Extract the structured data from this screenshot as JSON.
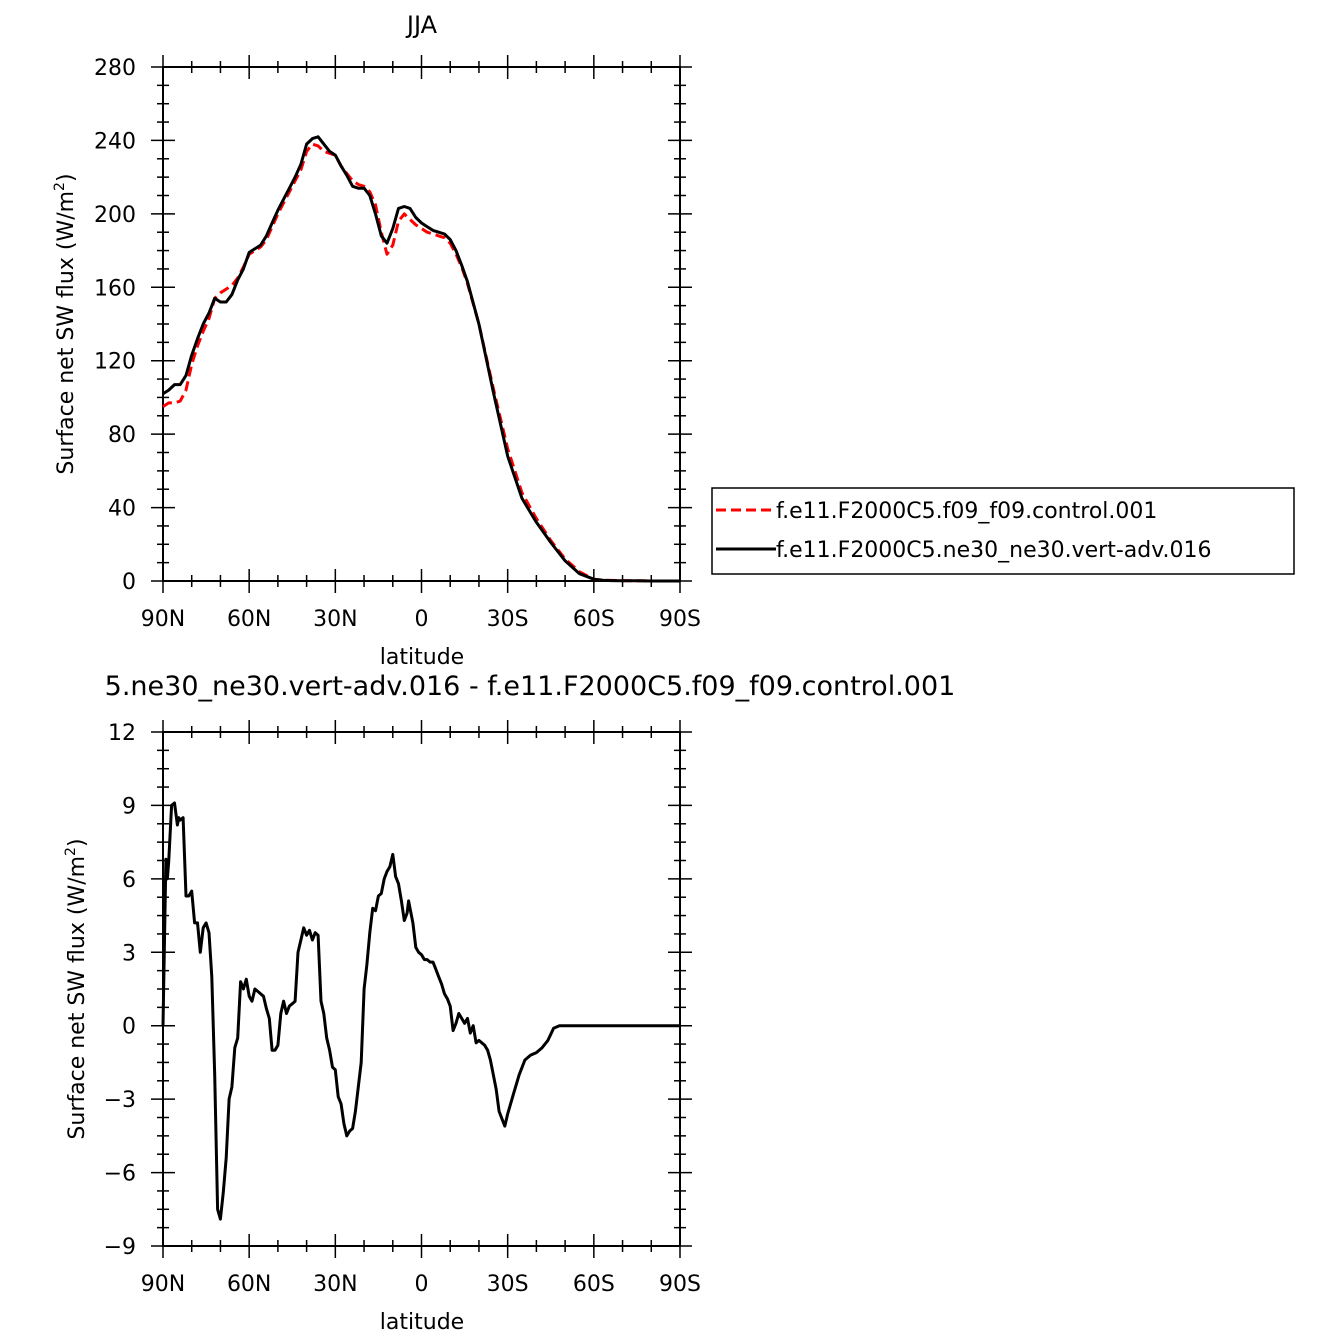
{
  "chart_data": [
    {
      "type": "line",
      "title": "JJA",
      "xlabel": "latitude",
      "ylabel": "Surface net SW flux (W/m",
      "ylabel_sup": "2",
      "ylabel_end": ")",
      "x_ticks": [
        {
          "value": 90,
          "label": "90N"
        },
        {
          "value": 60,
          "label": "60N"
        },
        {
          "value": 30,
          "label": "30N"
        },
        {
          "value": 0,
          "label": "0"
        },
        {
          "value": -30,
          "label": "30S"
        },
        {
          "value": -60,
          "label": "60S"
        },
        {
          "value": -90,
          "label": "90S"
        }
      ],
      "y_ticks": [
        0,
        40,
        80,
        120,
        160,
        200,
        240,
        280
      ],
      "xlim": [
        90,
        -90
      ],
      "ylim": [
        0,
        280
      ],
      "legend_position": "right",
      "series": [
        {
          "name": "f.e11.F2000C5.f09_f09.control.001",
          "color": "#ff0000",
          "dashed": true,
          "x": [
            90,
            88,
            86,
            84,
            82,
            80,
            78,
            76,
            74,
            72,
            70,
            68,
            66,
            64,
            62,
            60,
            58,
            56,
            54,
            52,
            50,
            48,
            46,
            44,
            42,
            40,
            38,
            36,
            34,
            32,
            30,
            28,
            26,
            24,
            22,
            20,
            18,
            16,
            14,
            12,
            10,
            8,
            6,
            4,
            2,
            0,
            -2,
            -4,
            -6,
            -8,
            -10,
            -12,
            -14,
            -16,
            -20,
            -25,
            -30,
            -35,
            -40,
            -45,
            -50,
            -55,
            -60,
            -63,
            -66,
            -70,
            -75,
            -80,
            -90
          ],
          "y": [
            95,
            97,
            97,
            98,
            104,
            118,
            128,
            136,
            143,
            154,
            157,
            159,
            161,
            165,
            171,
            178,
            180,
            182,
            186,
            193,
            200,
            206,
            212,
            218,
            224,
            234,
            238,
            237,
            234,
            233,
            232,
            226,
            222,
            218,
            216,
            215,
            212,
            205,
            190,
            178,
            183,
            196,
            200,
            197,
            194,
            192,
            190,
            189,
            188,
            187,
            184,
            178,
            171,
            162,
            140,
            105,
            72,
            48,
            34,
            22,
            12,
            5,
            1,
            0.5,
            0.3,
            0.2,
            0.1,
            0,
            0
          ]
        },
        {
          "name": "f.e11.F2000C5.ne30_ne30.vert-adv.016",
          "color": "#000000",
          "dashed": false,
          "x": [
            90,
            88,
            86,
            84,
            82,
            80,
            78,
            76,
            74,
            72,
            70,
            68,
            66,
            64,
            62,
            60,
            58,
            56,
            54,
            52,
            50,
            48,
            46,
            44,
            42,
            40,
            38,
            36,
            34,
            32,
            30,
            28,
            26,
            24,
            22,
            20,
            18,
            16,
            14,
            12,
            10,
            8,
            6,
            4,
            2,
            0,
            -2,
            -4,
            -6,
            -8,
            -10,
            -12,
            -14,
            -16,
            -20,
            -25,
            -30,
            -35,
            -40,
            -45,
            -50,
            -55,
            -60,
            -63,
            -66,
            -70,
            -75,
            -80,
            -90
          ],
          "y": [
            102,
            104,
            107,
            107,
            112,
            123,
            132,
            140,
            146,
            154,
            152,
            152,
            156,
            164,
            170,
            179,
            181,
            183,
            188,
            195,
            202,
            208,
            214,
            220,
            227,
            238,
            241,
            242,
            238,
            234,
            232,
            226,
            221,
            215,
            214,
            214,
            210,
            200,
            188,
            184,
            192,
            203,
            204,
            203,
            198,
            195,
            193,
            191,
            190,
            189,
            186,
            180,
            172,
            163,
            140,
            103,
            68,
            45,
            32,
            21,
            11,
            4,
            1,
            0.4,
            0.2,
            0.1,
            0.1,
            0,
            0
          ]
        }
      ]
    },
    {
      "type": "line",
      "title": "5.ne30_ne30.vert-adv.016 - f.e11.F2000C5.f09_f09.control.001",
      "xlabel": "latitude",
      "ylabel": "Surface net SW flux (W/m",
      "ylabel_sup": "2",
      "ylabel_end": ")",
      "x_ticks": [
        {
          "value": 90,
          "label": "90N"
        },
        {
          "value": 60,
          "label": "60N"
        },
        {
          "value": 30,
          "label": "30N"
        },
        {
          "value": 0,
          "label": "0"
        },
        {
          "value": -30,
          "label": "30S"
        },
        {
          "value": -60,
          "label": "60S"
        },
        {
          "value": -90,
          "label": "90S"
        }
      ],
      "y_ticks": [
        -9,
        -6,
        -3,
        0,
        3,
        6,
        9,
        12
      ],
      "xlim": [
        90,
        -90
      ],
      "ylim": [
        -9,
        12
      ],
      "series": [
        {
          "color": "#000000",
          "dashed": false,
          "x": [
            90,
            89,
            88.5,
            88,
            87,
            86,
            85,
            84.5,
            84,
            83,
            82,
            81,
            80,
            79,
            78,
            77,
            76,
            75,
            74,
            73,
            72,
            71,
            70,
            69,
            68,
            67,
            66,
            65,
            64,
            63,
            62,
            61,
            60,
            59,
            58,
            57,
            56,
            55,
            54,
            53,
            52,
            51,
            50,
            49,
            48,
            47,
            46,
            45,
            44,
            43,
            42,
            41,
            40,
            39,
            38,
            37,
            36,
            35,
            34,
            33,
            32,
            31,
            30,
            29,
            28,
            27,
            26,
            25,
            24,
            23,
            22,
            21,
            20,
            19,
            18,
            17,
            16,
            15,
            14,
            13,
            12,
            11,
            10,
            9,
            8,
            7,
            6,
            5,
            4.5,
            4,
            3,
            2,
            1,
            0,
            -1,
            -2,
            -3,
            -4,
            -5,
            -6,
            -7,
            -8,
            -9,
            -10,
            -11,
            -12,
            -13,
            -14,
            -15,
            -16,
            -17,
            -18,
            -19,
            -20,
            -21,
            -22,
            -23,
            -24,
            -25,
            -26,
            -27,
            -28,
            -29,
            -30,
            -32,
            -34,
            -36,
            -38,
            -40,
            -42,
            -44,
            -46,
            -48,
            -50,
            -52,
            -54,
            -56,
            -58,
            -60,
            -62,
            -64,
            -66,
            -68,
            -70,
            -75,
            -80,
            -90
          ],
          "y": [
            0,
            6.8,
            6.0,
            6.7,
            9.0,
            9.1,
            8.2,
            8.5,
            8.4,
            8.5,
            5.3,
            5.3,
            5.5,
            4.2,
            4.2,
            3.0,
            4.0,
            4.2,
            3.8,
            2.0,
            -2.0,
            -7.5,
            -7.9,
            -6.8,
            -5.4,
            -3.0,
            -2.5,
            -0.9,
            -0.5,
            1.8,
            1.5,
            1.9,
            1.2,
            1.0,
            1.5,
            1.4,
            1.3,
            1.2,
            0.7,
            0.3,
            -1.0,
            -1.0,
            -0.8,
            0.5,
            1.0,
            0.5,
            0.8,
            0.9,
            1.0,
            3.0,
            3.5,
            4.0,
            3.7,
            3.9,
            3.5,
            3.8,
            3.7,
            1.0,
            0.5,
            -0.5,
            -1.0,
            -1.7,
            -1.8,
            -2.9,
            -3.2,
            -4.0,
            -4.5,
            -4.3,
            -4.2,
            -3.5,
            -2.5,
            -1.5,
            1.5,
            2.5,
            3.8,
            4.8,
            4.7,
            5.3,
            5.4,
            6.0,
            6.3,
            6.5,
            7.0,
            6.1,
            5.8,
            5.1,
            4.3,
            4.6,
            5.1,
            4.8,
            4.2,
            3.2,
            3.0,
            2.9,
            2.7,
            2.7,
            2.6,
            2.6,
            2.3,
            2.0,
            1.7,
            1.3,
            1.1,
            0.8,
            -0.2,
            0.1,
            0.5,
            0.3,
            0.1,
            0.3,
            -0.3,
            0.0,
            -0.7,
            -0.6,
            -0.7,
            -0.8,
            -1.0,
            -1.4,
            -2.0,
            -2.6,
            -3.5,
            -3.8,
            -4.1,
            -3.6,
            -2.8,
            -2.0,
            -1.4,
            -1.2,
            -1.1,
            -0.9,
            -0.6,
            -0.1,
            0.0,
            0.0,
            0.0,
            0.0,
            0.0,
            0.0,
            0.0,
            0.0,
            0.0,
            0.0,
            0.0,
            0.0,
            0.0,
            0.0,
            0.0
          ]
        }
      ]
    }
  ]
}
